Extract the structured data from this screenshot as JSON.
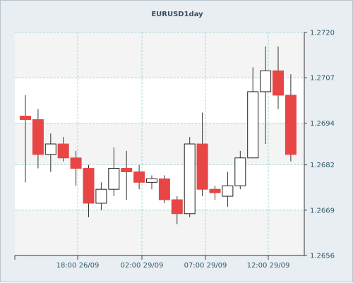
{
  "chart_data": {
    "type": "candlestick",
    "title": "EURUSD1day",
    "grid": true,
    "ylim": [
      1.2656,
      1.272
    ],
    "y_ticks": [
      "1.2720",
      "1.2707",
      "1.2694",
      "1.2682",
      "1.2669",
      "1.2656"
    ],
    "x_ticks": [
      "18:00 26/09",
      "02:00 29/09",
      "07:00 29/09",
      "12:00 29/09"
    ],
    "colors": {
      "up": "#ffffff",
      "down": "#e84545",
      "wick": "#333333",
      "grid": "#8fcfd6"
    },
    "candles": [
      {
        "direction": "down",
        "open": 1.2696,
        "high": 1.2702,
        "low": 1.2677,
        "close": 1.2695
      },
      {
        "direction": "down",
        "open": 1.2695,
        "high": 1.2698,
        "low": 1.2681,
        "close": 1.2685
      },
      {
        "direction": "up",
        "open": 1.2685,
        "high": 1.2691,
        "low": 1.268,
        "close": 1.2688
      },
      {
        "direction": "down",
        "open": 1.2688,
        "high": 1.269,
        "low": 1.2683,
        "close": 1.2684
      },
      {
        "direction": "down",
        "open": 1.2684,
        "high": 1.2686,
        "low": 1.2676,
        "close": 1.2681
      },
      {
        "direction": "down",
        "open": 1.2681,
        "high": 1.2682,
        "low": 1.2667,
        "close": 1.2671
      },
      {
        "direction": "up",
        "open": 1.2671,
        "high": 1.2677,
        "low": 1.2669,
        "close": 1.2675
      },
      {
        "direction": "up",
        "open": 1.2675,
        "high": 1.2687,
        "low": 1.2673,
        "close": 1.2681
      },
      {
        "direction": "down",
        "open": 1.2681,
        "high": 1.2686,
        "low": 1.2672,
        "close": 1.268
      },
      {
        "direction": "down",
        "open": 1.268,
        "high": 1.2682,
        "low": 1.2675,
        "close": 1.2677
      },
      {
        "direction": "up",
        "open": 1.2677,
        "high": 1.2679,
        "low": 1.2675,
        "close": 1.2678
      },
      {
        "direction": "down",
        "open": 1.2678,
        "high": 1.2679,
        "low": 1.2671,
        "close": 1.2672
      },
      {
        "direction": "down",
        "open": 1.2672,
        "high": 1.2673,
        "low": 1.2665,
        "close": 1.2668
      },
      {
        "direction": "up",
        "open": 1.2668,
        "high": 1.269,
        "low": 1.2667,
        "close": 1.2688
      },
      {
        "direction": "down",
        "open": 1.2688,
        "high": 1.2697,
        "low": 1.2673,
        "close": 1.2675
      },
      {
        "direction": "down",
        "open": 1.2675,
        "high": 1.2676,
        "low": 1.2672,
        "close": 1.2674
      },
      {
        "direction": "up",
        "open": 1.2673,
        "high": 1.268,
        "low": 1.267,
        "close": 1.2676
      },
      {
        "direction": "up",
        "open": 1.2676,
        "high": 1.2686,
        "low": 1.2675,
        "close": 1.2684
      },
      {
        "direction": "up",
        "open": 1.2684,
        "high": 1.271,
        "low": 1.2684,
        "close": 1.2703
      },
      {
        "direction": "up",
        "open": 1.2703,
        "high": 1.2716,
        "low": 1.2688,
        "close": 1.2709
      },
      {
        "direction": "down",
        "open": 1.2709,
        "high": 1.2716,
        "low": 1.2698,
        "close": 1.2702
      },
      {
        "direction": "down",
        "open": 1.2702,
        "high": 1.2708,
        "low": 1.2683,
        "close": 1.2685
      }
    ]
  }
}
